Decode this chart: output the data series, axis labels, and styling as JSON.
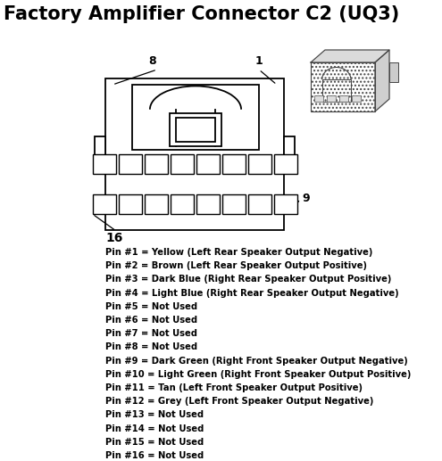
{
  "title": "Factory Amplifier Connector C2 (UQ3)",
  "title_fontsize": 15,
  "bg_color": "#ffffff",
  "text_color": "#000000",
  "pins": [
    "Pin #1 = Yellow (Left Rear Speaker Output Negative)",
    "Pin #2 = Brown (Left Rear Speaker Output Positive)",
    "Pin #3 = Dark Blue (Right Rear Speaker Output Positive)",
    "Pin #4 = Light Blue (Right Rear Speaker Output Negative)",
    "Pin #5 = Not Used",
    "Pin #6 = Not Used",
    "Pin #7 = Not Used",
    "Pin #8 = Not Used",
    "Pin #9 = Dark Green (Right Front Speaker Output Negative)",
    "Pin #10 = Light Green (Right Front Speaker Output Positive)",
    "Pin #11 = Tan (Left Front Speaker Output Positive)",
    "Pin #12 = Grey (Left Front Speaker Output Negative)",
    "Pin #13 = Not Used",
    "Pin #14 = Not Used",
    "Pin #15 = Not Used",
    "Pin #16 = Not Used"
  ],
  "pin_fontsize": 7.2,
  "figw": 4.95,
  "figh": 5.17,
  "dpi": 100
}
